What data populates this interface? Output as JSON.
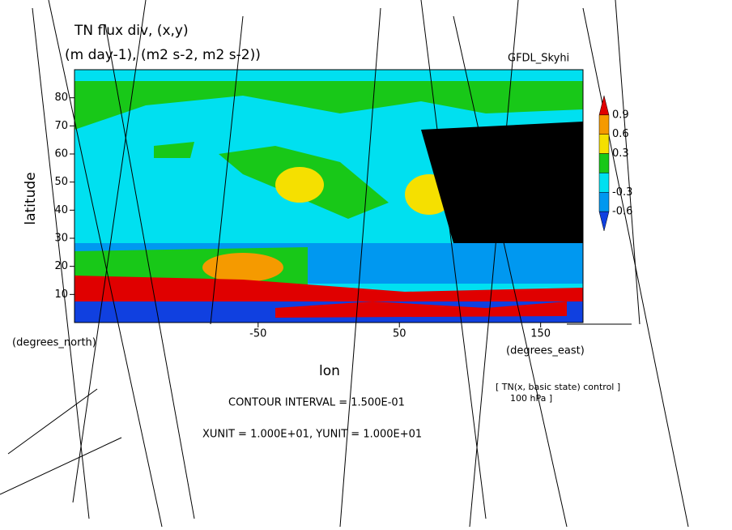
{
  "chart_data": {
    "type": "contour",
    "title": "TN flux div, (x,y)",
    "subtitle": "(m day-1), (m2 s-2, m2 s-2))",
    "model_label": "GFDL_Skyhi",
    "y_label": "latitude",
    "y_units": "(degrees_north)",
    "x_label": "lon",
    "x_units": "(degrees_east)",
    "xlim": [
      -180,
      180
    ],
    "ylim": [
      0,
      90
    ],
    "xticks": [
      -50,
      50,
      150
    ],
    "yticks": [
      10,
      20,
      30,
      40,
      50,
      60,
      70,
      80
    ],
    "colorbar": {
      "labels": [
        0.9,
        0.6,
        0.3,
        -0.3,
        -0.6
      ],
      "colors": [
        "#e00000",
        "#f59a00",
        "#f5e000",
        "#18c818",
        "#00e0f0",
        "#0098f0",
        "#1040e0"
      ]
    },
    "contour_interval": "CONTOUR INTERVAL = 1.500E-01",
    "vector_units": "XUNIT = 1.000E+01, YUNIT = 1.000E+01",
    "dataset_note": "[ TN(x, basic state) control ]",
    "level_note": "100 hPa ]"
  }
}
